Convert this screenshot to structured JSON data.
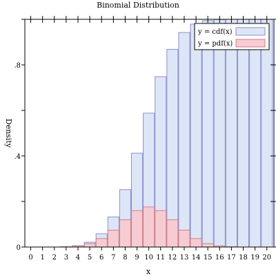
{
  "chart_data": {
    "type": "bar",
    "title": "Binomial Distribution",
    "xlabel": "x",
    "ylabel": "Density",
    "x": [
      0,
      1,
      2,
      3,
      4,
      5,
      6,
      7,
      8,
      9,
      10,
      11,
      12,
      13,
      14,
      15,
      16,
      17,
      18,
      19,
      20
    ],
    "xticklabels": [
      "0",
      "1",
      "2",
      "3",
      "4",
      "5",
      "6",
      "7",
      "8",
      "9",
      "10",
      "11",
      "12",
      "13",
      "14",
      "15",
      "16",
      "17",
      "18",
      "19",
      "20"
    ],
    "yticks": [
      0,
      0.4,
      0.8
    ],
    "yticklabels": [
      "0",
      ".4",
      ".8"
    ],
    "xlim": [
      -0.5,
      20.6
    ],
    "ylim": [
      0,
      1.0
    ],
    "grid": false,
    "legend": "top-right",
    "series": [
      {
        "name": "y = cdf(x)",
        "fill": "#dde6f6",
        "stroke": "#8a8fcf",
        "values": [
          0.0,
          0.0,
          0.0,
          0.001,
          0.006,
          0.021,
          0.058,
          0.132,
          0.252,
          0.412,
          0.588,
          0.748,
          0.868,
          0.942,
          0.979,
          0.994,
          0.999,
          1.0,
          1.0,
          1.0,
          1.0
        ]
      },
      {
        "name": "y = pdf(x)",
        "fill": "#f6ccd2",
        "stroke": "#cf7f8a",
        "values": [
          0.0,
          0.0,
          0.0,
          0.001,
          0.005,
          0.015,
          0.037,
          0.074,
          0.12,
          0.16,
          0.176,
          0.16,
          0.12,
          0.074,
          0.037,
          0.015,
          0.005,
          0.001,
          0.0,
          0.0,
          0.0
        ]
      }
    ]
  }
}
